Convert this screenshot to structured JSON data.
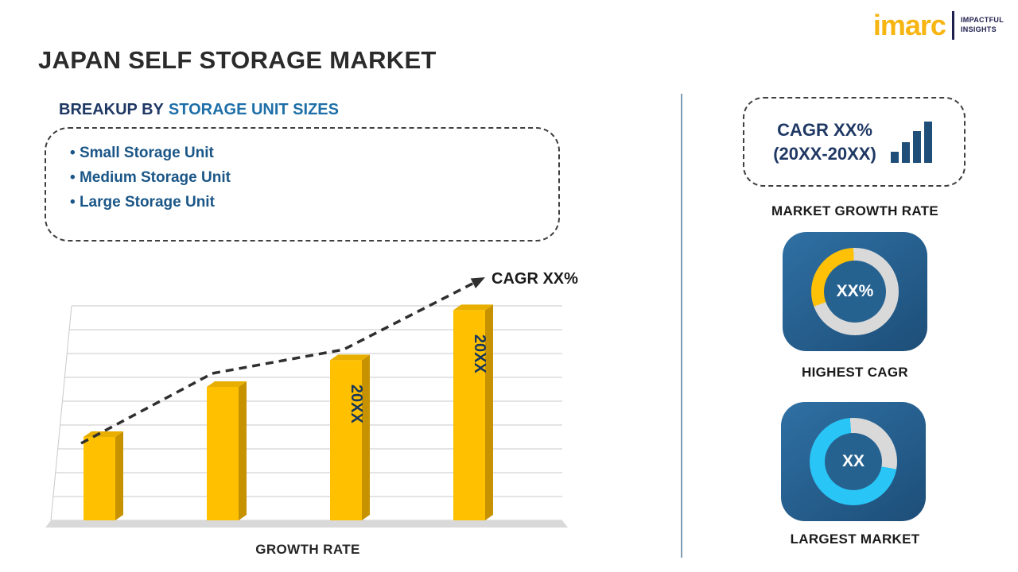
{
  "brand": {
    "name": "imarc",
    "tagline_top": "IMPACTFUL",
    "tagline_bottom": "INSIGHTS"
  },
  "title": "JAPAN SELF STORAGE MARKET",
  "breakup": {
    "heading_prefix": "BREAKUP BY",
    "heading_highlight": "STORAGE UNIT SIZES",
    "items": [
      "Small Storage Unit",
      "Medium Storage Unit",
      "Large Storage Unit"
    ]
  },
  "chart_data": {
    "type": "bar",
    "title": "",
    "xlabel": "GROWTH RATE",
    "ylabel": "",
    "bar_labels": [
      "",
      "",
      "20XX",
      "20XX"
    ],
    "values": [
      25,
      40,
      48,
      63
    ],
    "bar_color": "#FFC000",
    "grid": true,
    "trend": {
      "style": "dashed-arrow-up",
      "label": "CAGR XX%"
    }
  },
  "sidebar": {
    "growth_card": {
      "line1": "CAGR XX%",
      "line2": "(20XX-20XX)",
      "caption": "MARKET GROWTH RATE"
    },
    "highest_cagr": {
      "value": "XX%",
      "caption": "HIGHEST CAGR",
      "accent": "#FFC107",
      "segment_percent": 30
    },
    "largest_market": {
      "value": "XX",
      "caption": "LARGEST MARKET",
      "accent": "#29C5F6",
      "segment_percent": 71
    }
  }
}
